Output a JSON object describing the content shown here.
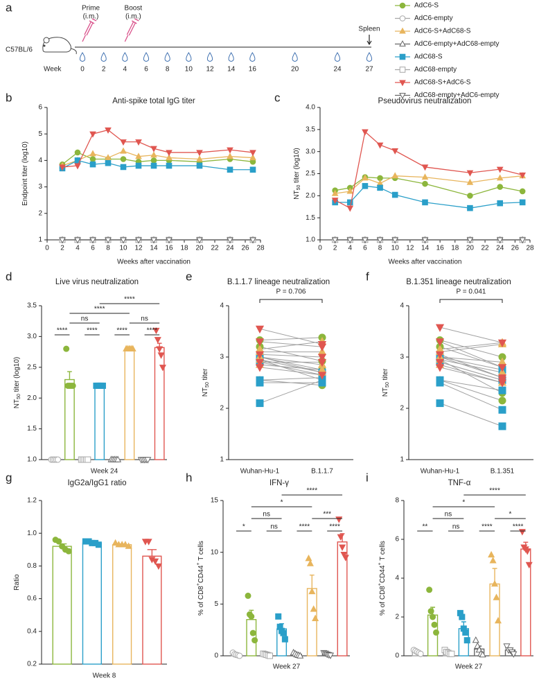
{
  "chart_data": [
    {
      "type": "timeline",
      "panel": "a",
      "strain": "C57BL/6",
      "axis_label": "Week",
      "weeks": [
        0,
        2,
        4,
        6,
        8,
        10,
        12,
        14,
        16,
        20,
        24,
        27
      ],
      "events": [
        {
          "label": [
            "Prime",
            "(i.m.)"
          ],
          "week": 0,
          "icon": "syringe"
        },
        {
          "label": [
            "Boost",
            "(i.m.)"
          ],
          "week": 4,
          "icon": "syringe"
        },
        {
          "label": [
            "Spleen"
          ],
          "week": 27,
          "icon": "arrow"
        }
      ]
    },
    {
      "type": "line",
      "panel": "b",
      "title": "Anti-spike total IgG titer",
      "xlabel": "Weeks after vaccination",
      "ylabel": [
        "Endpoint titer (log10)"
      ],
      "x": [
        2,
        4,
        6,
        8,
        10,
        12,
        14,
        16,
        20,
        24,
        27
      ],
      "xlim": [
        0,
        28
      ],
      "xticks": [
        0,
        2,
        4,
        6,
        8,
        10,
        12,
        14,
        16,
        18,
        20,
        22,
        24,
        26,
        28
      ],
      "ylim": [
        1,
        6
      ],
      "yticks": [
        1,
        2,
        3,
        4,
        5,
        6
      ],
      "series": [
        {
          "name": "AdC6-S",
          "color": "#8cb63c",
          "marker": "circle",
          "values": [
            3.85,
            4.3,
            4.05,
            4.05,
            4.05,
            3.95,
            4.0,
            4.0,
            3.95,
            4.05,
            3.95
          ]
        },
        {
          "name": "AdC6-empty",
          "color": "#a6a6a6",
          "marker": "circle-open",
          "values": [
            1,
            1,
            1,
            1,
            1,
            1,
            1,
            1,
            1,
            1,
            1
          ]
        },
        {
          "name": "AdC6-S+AdC68-S",
          "color": "#e8b55d",
          "marker": "triangle",
          "values": [
            3.8,
            4.0,
            4.25,
            4.1,
            4.35,
            4.15,
            4.2,
            4.1,
            4.05,
            4.15,
            4.1
          ]
        },
        {
          "name": "AdC6-empty+AdC68-empty",
          "color": "#666666",
          "marker": "triangle-open",
          "values": [
            1,
            1,
            1,
            1,
            1,
            1,
            1,
            1,
            1,
            1,
            1
          ]
        },
        {
          "name": "AdC68-S",
          "color": "#2a9fc9",
          "marker": "square",
          "values": [
            3.7,
            4.0,
            3.85,
            3.9,
            3.75,
            3.8,
            3.8,
            3.8,
            3.8,
            3.65,
            3.65
          ]
        },
        {
          "name": "AdC68-empty",
          "color": "#a6a6a6",
          "marker": "square-open",
          "values": [
            1,
            1,
            1,
            1,
            1,
            1,
            1,
            1,
            1,
            1,
            1
          ]
        },
        {
          "name": "AdC68-S+AdC6-S",
          "color": "#e05650",
          "marker": "triangle-down",
          "values": [
            3.75,
            3.8,
            5.0,
            5.15,
            4.7,
            4.7,
            4.45,
            4.3,
            4.3,
            4.4,
            4.3
          ]
        },
        {
          "name": "AdC68-empty+AdC6-empty",
          "color": "#666666",
          "marker": "triangle-down-open",
          "values": [
            1,
            1,
            1,
            1,
            1,
            1,
            1,
            1,
            1,
            1,
            1
          ]
        }
      ]
    },
    {
      "type": "line",
      "panel": "c",
      "title": "Pseudovirus neutralization",
      "xlabel": "Weeks after vaccination",
      "ylabel": [
        "NT",
        {
          "sub": "50"
        },
        " titer (log10)"
      ],
      "x": [
        2,
        4,
        6,
        8,
        10,
        14,
        20,
        24,
        27
      ],
      "xlim": [
        0,
        28
      ],
      "xticks": [
        0,
        2,
        4,
        6,
        8,
        10,
        12,
        14,
        16,
        18,
        20,
        22,
        24,
        26,
        28
      ],
      "ylim": [
        1,
        4
      ],
      "yticks": [
        {
          "value": 1,
          "label": "1.0"
        },
        1.5,
        {
          "value": 2,
          "label": "2.0"
        },
        2.5,
        {
          "value": 3,
          "label": "3.0"
        },
        3.5,
        {
          "value": 4,
          "label": "4.0"
        }
      ],
      "series": [
        {
          "color": "#8cb63c",
          "marker": "circle",
          "values": [
            2.12,
            2.18,
            2.42,
            2.4,
            2.4,
            2.27,
            2.0,
            2.2,
            2.1
          ]
        },
        {
          "color": "#a6a6a6",
          "marker": "circle-open",
          "values": [
            1,
            1,
            1,
            1,
            1,
            1,
            1,
            1,
            1
          ]
        },
        {
          "color": "#e8b55d",
          "marker": "triangle",
          "values": [
            2.05,
            2.1,
            2.4,
            2.28,
            2.45,
            2.42,
            2.3,
            2.4,
            2.45
          ]
        },
        {
          "color": "#666666",
          "marker": "triangle-open",
          "values": [
            1,
            1,
            1,
            1,
            1,
            1,
            1,
            1,
            1
          ]
        },
        {
          "color": "#2a9fc9",
          "marker": "square",
          "values": [
            1.85,
            1.85,
            2.22,
            2.18,
            2.02,
            1.85,
            1.72,
            1.83,
            1.85
          ]
        },
        {
          "color": "#a6a6a6",
          "marker": "square-open",
          "values": [
            1,
            1,
            1,
            1,
            1,
            1,
            1,
            1,
            1
          ]
        },
        {
          "color": "#e05650",
          "marker": "triangle-down",
          "values": [
            1.9,
            1.72,
            3.45,
            3.15,
            3.02,
            2.65,
            2.52,
            2.6,
            2.47
          ]
        },
        {
          "color": "#666666",
          "marker": "triangle-down-open",
          "values": [
            1,
            1,
            1,
            1,
            1,
            1,
            1,
            1,
            1
          ]
        }
      ]
    },
    {
      "type": "bar",
      "panel": "d",
      "title": "Live virus neutralization",
      "xlabel": "Week 24",
      "ylabel": [
        "NT",
        {
          "sub": "50"
        },
        " titer (log10)"
      ],
      "ylim": [
        1,
        3.5
      ],
      "yticks": [
        {
          "value": 1,
          "label": "1.0"
        },
        1.5,
        {
          "value": 2,
          "label": "2.0"
        },
        2.5,
        {
          "value": 3,
          "label": "3.0"
        },
        3.5
      ],
      "colors": [
        "#a6a6a6",
        "#8cb63c",
        "#a6a6a6",
        "#2a9fc9",
        "#666666",
        "#e8b55d",
        "#666666",
        "#e05650"
      ],
      "markers": [
        "circle-open",
        "circle",
        "square-open",
        "square",
        "triangle-open",
        "triangle",
        "triangle-down-open",
        "triangle-down"
      ],
      "values": [
        1,
        2.3,
        1,
        2.2,
        1,
        2.8,
        1,
        2.82
      ],
      "errors": [
        null,
        0.13,
        null,
        null,
        null,
        null,
        null,
        0.07
      ],
      "points": [
        [
          1,
          1,
          1,
          1,
          1
        ],
        [
          2.8,
          2.2,
          2.2,
          2.2,
          2.2
        ],
        [
          1,
          1,
          1,
          1,
          1
        ],
        [
          2.2,
          2.2,
          2.2,
          2.2,
          2.2
        ],
        [
          1,
          1,
          1,
          1,
          1
        ],
        [
          2.8,
          2.8,
          2.8,
          2.8,
          2.8
        ],
        [
          1,
          1,
          1,
          1,
          1
        ],
        [
          3.1,
          2.95,
          2.8,
          2.7,
          2.5
        ]
      ],
      "brackets": [
        {
          "from": 0,
          "to": 1,
          "label": "****"
        },
        {
          "from": 2,
          "to": 3,
          "label": "****"
        },
        {
          "from": 4,
          "to": 5,
          "label": "****"
        },
        {
          "from": 6,
          "to": 7,
          "label": "****"
        },
        {
          "from": 1,
          "to": 3,
          "label": "ns"
        },
        {
          "from": 5,
          "to": 7,
          "label": "ns"
        },
        {
          "from": 1,
          "to": 5,
          "label": "****"
        },
        {
          "from": 3,
          "to": 7,
          "label": "****"
        }
      ]
    },
    {
      "type": "paired",
      "panel": "e",
      "title": "B.1.1.7 lineage neutralization",
      "ylabel": [
        "NT",
        {
          "sub": "50"
        },
        " titer"
      ],
      "annotation": "P = 0.706",
      "categories": [
        "Wuhan-Hu-1",
        "B.1.1.7"
      ],
      "ylim": [
        1,
        4
      ],
      "yticks": [
        1,
        2,
        3,
        4
      ],
      "series": [
        {
          "color": "#8cb63c",
          "marker": "circle",
          "before": [
            3.33,
            3.2,
            3.0,
            2.95,
            2.55
          ],
          "after": [
            3.38,
            2.92,
            2.75,
            2.55,
            2.45
          ]
        },
        {
          "color": "#2a9fc9",
          "marker": "square",
          "before": [
            3.0,
            2.9,
            2.55,
            2.5,
            2.1
          ],
          "after": [
            2.7,
            2.65,
            2.6,
            2.5,
            2.55
          ]
        },
        {
          "color": "#e8b55d",
          "marker": "triangle",
          "before": [
            3.15,
            3.1,
            3.0,
            2.95,
            2.85
          ],
          "after": [
            3.3,
            3.1,
            2.85,
            2.7,
            2.75
          ]
        },
        {
          "color": "#e05650",
          "marker": "triangle-down",
          "before": [
            3.55,
            3.3,
            3.05,
            2.9,
            2.8
          ],
          "after": [
            3.25,
            3.2,
            3.0,
            2.9,
            2.65
          ]
        }
      ]
    },
    {
      "type": "paired",
      "panel": "f",
      "title": "B.1.351 lineage neutralization",
      "ylabel": [
        "NT",
        {
          "sub": "50"
        },
        " titer"
      ],
      "annotation": "P = 0.041",
      "categories": [
        "Wuhan-Hu-1",
        "B.1.351"
      ],
      "ylim": [
        1,
        4
      ],
      "yticks": [
        1,
        2,
        3,
        4
      ],
      "series": [
        {
          "color": "#8cb63c",
          "marker": "circle",
          "before": [
            3.33,
            3.2,
            3.0,
            2.95,
            2.55
          ],
          "after": [
            3.0,
            2.8,
            2.6,
            2.3,
            2.15
          ]
        },
        {
          "color": "#2a9fc9",
          "marker": "square",
          "before": [
            3.0,
            2.9,
            2.55,
            2.5,
            2.1
          ],
          "after": [
            2.75,
            2.55,
            2.35,
            1.97,
            1.65
          ]
        },
        {
          "color": "#e8b55d",
          "marker": "triangle",
          "before": [
            3.15,
            3.1,
            3.0,
            2.95,
            2.85
          ],
          "after": [
            3.28,
            3.25,
            2.9,
            2.7,
            2.5
          ]
        },
        {
          "color": "#e05650",
          "marker": "triangle-down",
          "before": [
            3.58,
            3.3,
            3.05,
            2.9,
            2.8
          ],
          "after": [
            3.28,
            2.8,
            2.6,
            2.55,
            2.5
          ]
        }
      ]
    },
    {
      "type": "bar",
      "panel": "g",
      "title": "IgG2a/IgG1 ratio",
      "xlabel": "Week 8",
      "ylabel": [
        "Ratio"
      ],
      "ylim": [
        0.2,
        1.2
      ],
      "yticks": [
        0.2,
        0.4,
        0.6,
        0.8,
        {
          "value": 1,
          "label": "1.0"
        },
        1.2
      ],
      "colors": [
        "#8cb63c",
        "#2a9fc9",
        "#e8b55d",
        "#e05650"
      ],
      "markers": [
        "circle",
        "square",
        "triangle",
        "triangle-down"
      ],
      "values": [
        0.92,
        0.94,
        0.93,
        0.86
      ],
      "errors": [
        0.015,
        0.005,
        0.005,
        0.04
      ],
      "points": [
        [
          0.96,
          0.95,
          0.92,
          0.9,
          0.89
        ],
        [
          0.95,
          0.95,
          0.94,
          0.94,
          0.93
        ],
        [
          0.94,
          0.93,
          0.93,
          0.93,
          0.92
        ],
        [
          0.95,
          0.95,
          0.84,
          0.83,
          0.8
        ]
      ]
    },
    {
      "type": "bar",
      "panel": "h",
      "title": "IFN-γ",
      "xlabel": "Week 27",
      "ylabel": [
        "% of CD8",
        {
          "sup": "+"
        },
        "CD44",
        {
          "sup": "+"
        },
        " T cells"
      ],
      "ylim": [
        0,
        15
      ],
      "yticks": [
        0,
        5,
        10,
        15
      ],
      "colors": [
        "#a6a6a6",
        "#8cb63c",
        "#a6a6a6",
        "#2a9fc9",
        "#666666",
        "#e8b55d",
        "#666666",
        "#e05650"
      ],
      "markers": [
        "circle-open",
        "circle",
        "square-open",
        "square",
        "triangle-open",
        "triangle",
        "triangle-down-open",
        "triangle-down"
      ],
      "values": [
        0.1,
        3.5,
        0.1,
        2.6,
        0.15,
        6.5,
        0.2,
        11
      ],
      "errors": [
        0.05,
        0.9,
        0.05,
        0.5,
        0.05,
        1.3,
        0.05,
        0.8
      ],
      "points": [
        [
          0.3,
          0.15,
          0.1,
          0.05,
          0
        ],
        [
          5.8,
          4.0,
          3.8,
          2.2,
          1.5
        ],
        [
          0.2,
          0.15,
          0.1,
          0.05,
          0
        ],
        [
          3.8,
          2.8,
          2.4,
          2.2,
          1.6
        ],
        [
          0.3,
          0.2,
          0.1,
          0.05,
          0
        ],
        [
          9.4,
          8.9,
          6.2,
          4.5,
          3.6
        ],
        [
          0.3,
          0.25,
          0.15,
          0.1,
          0.05
        ],
        [
          13.2,
          11.5,
          10.5,
          9.8,
          9.5
        ]
      ],
      "brackets": [
        {
          "from": 0,
          "to": 1,
          "label": "*"
        },
        {
          "from": 2,
          "to": 3,
          "label": "ns"
        },
        {
          "from": 4,
          "to": 5,
          "label": "****"
        },
        {
          "from": 6,
          "to": 7,
          "label": "****"
        },
        {
          "from": 1,
          "to": 3,
          "label": "ns"
        },
        {
          "from": 5,
          "to": 7,
          "label": "***"
        },
        {
          "from": 1,
          "to": 5,
          "label": "*"
        },
        {
          "from": 3,
          "to": 7,
          "label": "****"
        }
      ]
    },
    {
      "type": "bar",
      "panel": "i",
      "title": "TNF-α",
      "xlabel": "Week 27",
      "ylabel": [
        "% of CD8",
        {
          "sup": "+"
        },
        "CD44",
        {
          "sup": "+"
        },
        " T cells"
      ],
      "ylim": [
        0,
        8
      ],
      "yticks": [
        0,
        2,
        4,
        6,
        8
      ],
      "colors": [
        "#a6a6a6",
        "#8cb63c",
        "#a6a6a6",
        "#2a9fc9",
        "#666666",
        "#e8b55d",
        "#666666",
        "#e05650"
      ],
      "markers": [
        "circle-open",
        "circle",
        "square-open",
        "square",
        "triangle-open",
        "triangle",
        "triangle-down-open",
        "triangle-down"
      ],
      "values": [
        0.2,
        2.1,
        0.2,
        1.4,
        0.35,
        3.7,
        0.3,
        5.5
      ],
      "errors": [
        0.04,
        0.4,
        0.04,
        0.35,
        0.15,
        0.8,
        0.08,
        0.35
      ],
      "points": [
        [
          0.3,
          0.25,
          0.2,
          0.15,
          0.1
        ],
        [
          3.4,
          2.3,
          2.0,
          1.6,
          1.2
        ],
        [
          0.3,
          0.2,
          0.15,
          0.1,
          0.1
        ],
        [
          2.2,
          2.0,
          1.4,
          1.2,
          0.8
        ],
        [
          0.8,
          0.5,
          0.3,
          0.1,
          0.05
        ],
        [
          5.2,
          4.9,
          3.7,
          3.0,
          1.8
        ],
        [
          0.5,
          0.3,
          0.3,
          0.2,
          0.1
        ],
        [
          6.4,
          5.6,
          5.5,
          5.4,
          4.7
        ]
      ],
      "brackets": [
        {
          "from": 0,
          "to": 1,
          "label": "**"
        },
        {
          "from": 2,
          "to": 3,
          "label": "ns"
        },
        {
          "from": 4,
          "to": 5,
          "label": "****"
        },
        {
          "from": 6,
          "to": 7,
          "label": "****"
        },
        {
          "from": 1,
          "to": 3,
          "label": "ns"
        },
        {
          "from": 5,
          "to": 7,
          "label": "*"
        },
        {
          "from": 1,
          "to": 5,
          "label": "*"
        },
        {
          "from": 3,
          "to": 7,
          "label": "****"
        }
      ]
    }
  ]
}
